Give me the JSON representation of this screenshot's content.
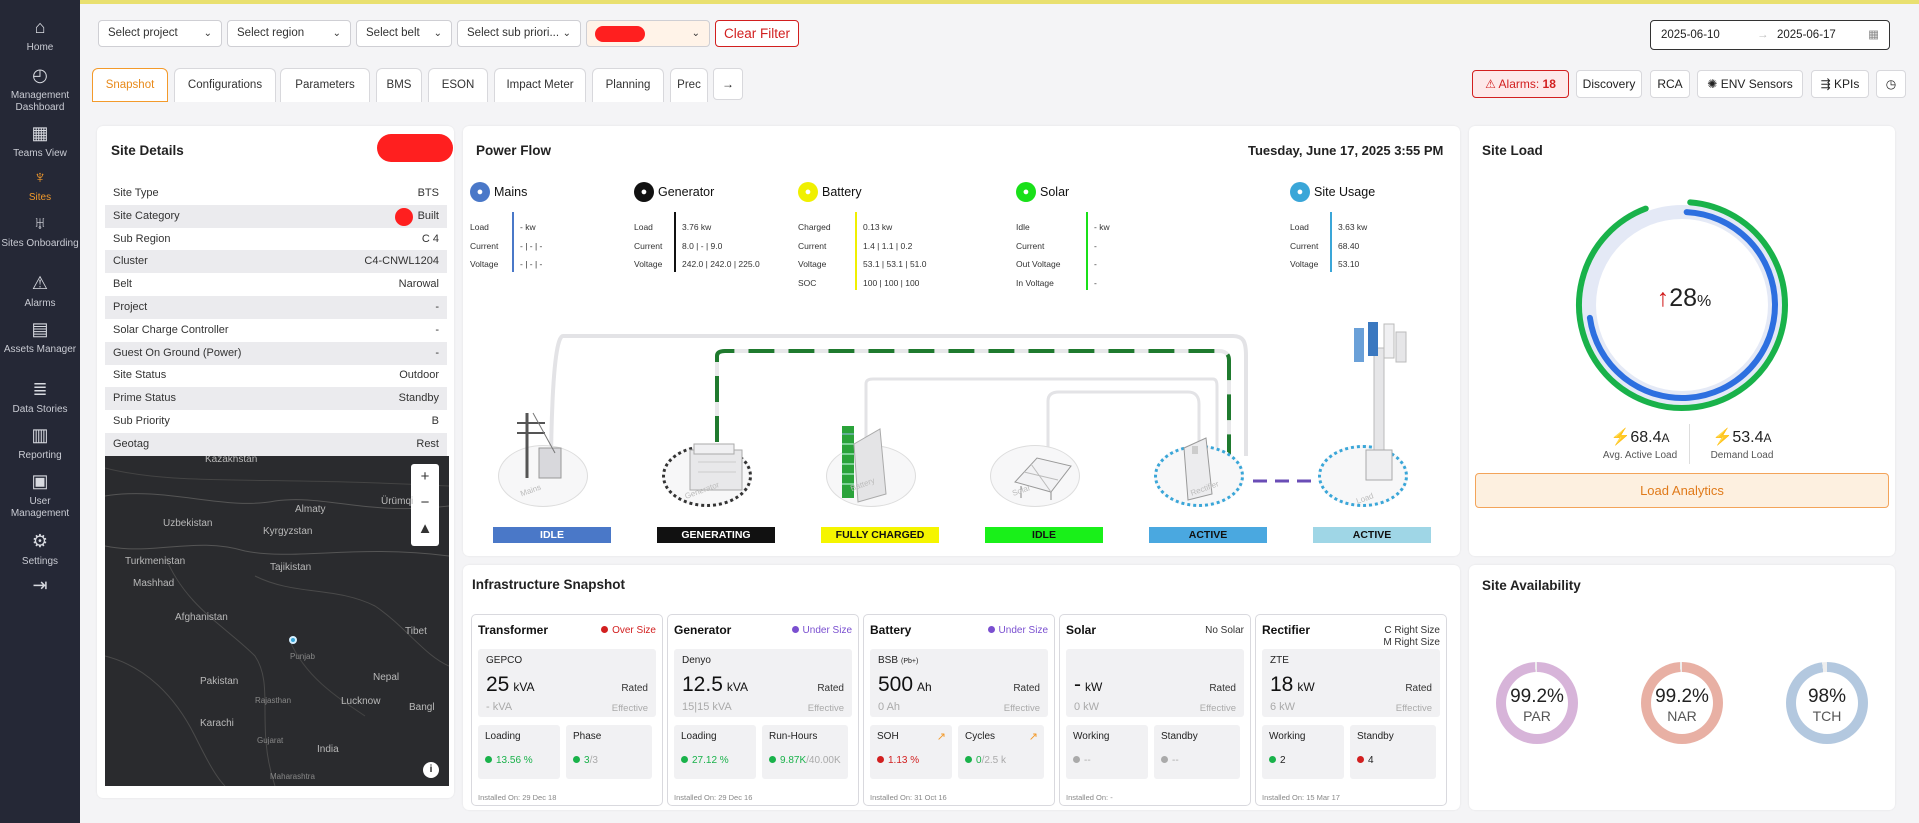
{
  "sidebar": {
    "items": [
      {
        "label": "Home",
        "icon": "home-icon",
        "glyph": "⌂"
      },
      {
        "label": "Management Dashboard",
        "icon": "dashboard-icon",
        "glyph": "◴"
      },
      {
        "label": "Teams View",
        "icon": "teams-icon",
        "glyph": "▦"
      },
      {
        "label": "Sites",
        "icon": "tower-icon",
        "glyph": "♆"
      },
      {
        "label": "Sites Onboarding",
        "icon": "onboarding-icon",
        "glyph": "♅"
      },
      {
        "label": "Alarms",
        "icon": "alarm-icon",
        "glyph": "⚠"
      },
      {
        "label": "Assets Manager",
        "icon": "assets-icon",
        "glyph": "▤"
      },
      {
        "label": "Data Stories",
        "icon": "database-icon",
        "glyph": "≣"
      },
      {
        "label": "Reporting",
        "icon": "report-icon",
        "glyph": "▥"
      },
      {
        "label": "User Management",
        "icon": "user-icon",
        "glyph": "▣"
      },
      {
        "label": "Settings",
        "icon": "gear-icon",
        "glyph": "⚙"
      },
      {
        "label": "",
        "icon": "logout-icon",
        "glyph": "⇥"
      }
    ]
  },
  "filters": {
    "project": "Select project",
    "region": "Select region",
    "belt": "Select belt",
    "sub_priority": "Select sub priori...",
    "clear": "Clear Filter",
    "date_from": "2025-06-10",
    "date_to": "2025-06-17"
  },
  "tabs": [
    "Snapshot",
    "Configurations",
    "Parameters",
    "BMS",
    "ESON",
    "Impact Meter",
    "Planning",
    "Prec"
  ],
  "actions": {
    "alarms_label": "Alarms:",
    "alarms_count": "18",
    "discovery": "Discovery",
    "rca": "RCA",
    "env": "ENV Sensors",
    "kpis": "KPIs"
  },
  "site_details": {
    "title": "Site Details",
    "rows": [
      {
        "k": "Site Type",
        "v": "BTS"
      },
      {
        "k": "Site Category",
        "v": "Built"
      },
      {
        "k": "Sub Region",
        "v": "C 4"
      },
      {
        "k": "Cluster",
        "v": "C4-CNWL1204"
      },
      {
        "k": "Belt",
        "v": "Narowal"
      },
      {
        "k": "Project",
        "v": "-"
      },
      {
        "k": "Solar Charge Controller",
        "v": "-"
      },
      {
        "k": "Guest On Ground (Power)",
        "v": "-"
      },
      {
        "k": "Site Status",
        "v": "Outdoor"
      },
      {
        "k": "Prime Status",
        "v": "Standby"
      },
      {
        "k": "Sub Priority",
        "v": "B"
      },
      {
        "k": "Geotag",
        "v": "Rest"
      }
    ],
    "map_labels": [
      "Kazakhstan",
      "Almaty",
      "Ürümqi",
      "Uzbekistan",
      "Kyrgyzstan",
      "Turkmenistan",
      "Tajikistan",
      "Mashhad",
      "Afghanistan",
      "Tibet",
      "Pakistan",
      "Nepal",
      "Lucknow",
      "Karachi",
      "India",
      "Bangl",
      "Punjab",
      "Rajasthan",
      "Gujarat",
      "Maharashtra"
    ]
  },
  "power_flow": {
    "title": "Power Flow",
    "datetime": "Tuesday, June 17, 2025 3:55 PM",
    "components": [
      {
        "name": "Mains",
        "color": "#4a78c8",
        "rows": [
          [
            "Load",
            "- kw"
          ],
          [
            "Current",
            "- | - | -"
          ],
          [
            "Voltage",
            "- | - | -"
          ]
        ],
        "status": "IDLE",
        "status_bg": "#4a78c8"
      },
      {
        "name": "Generator",
        "color": "#111111",
        "rows": [
          [
            "Load",
            "3.76 kw"
          ],
          [
            "Current",
            "8.0 | - | 9.0"
          ],
          [
            "Voltage",
            "242.0 | 242.0 | 225.0"
          ]
        ],
        "status": "GENERATING",
        "status_bg": "#111111"
      },
      {
        "name": "Battery",
        "color": "#f0f000",
        "rows": [
          [
            "Charged",
            "0.13 kw"
          ],
          [
            "Current",
            "1.4 | 1.1 | 0.2"
          ],
          [
            "Voltage",
            "53.1 | 53.1 | 51.0"
          ],
          [
            "SOC",
            "100 | 100 | 100"
          ]
        ],
        "status": "FULLY CHARGED",
        "status_bg": "#f5f500"
      },
      {
        "name": "Solar",
        "color": "#19e019",
        "rows": [
          [
            "Idle",
            "- kw"
          ],
          [
            "Current",
            "-"
          ],
          [
            "Out Voltage",
            "-"
          ],
          [
            "In Voltage",
            "-"
          ]
        ],
        "status": "IDLE",
        "status_bg": "#19f019"
      },
      {
        "name": "Site Usage",
        "color": "#3aa6d8",
        "rows": [
          [
            "Load",
            "3.63 kw"
          ],
          [
            "Current",
            "68.40"
          ],
          [
            "Voltage",
            "53.10"
          ]
        ],
        "status": "ACTIVE",
        "status_bg": "#4aa8e0"
      }
    ],
    "rectifier_status": "ACTIVE",
    "rectifier_status_bg": "#4aa8e0",
    "site_status": "ACTIVE",
    "site_status_bg": "#9fd6e6",
    "eq_labels": [
      "Mains",
      "Generator",
      "Battery",
      "Solar",
      "Rectifier",
      "Load"
    ]
  },
  "site_load": {
    "title": "Site Load",
    "pct": "28",
    "pct_unit": "%",
    "active": "68.4",
    "active_unit": "A",
    "active_label": "Avg. Active Load",
    "demand": "53.4",
    "demand_unit": "A",
    "demand_label": "Demand Load",
    "button": "Load Analytics",
    "outer_fraction": 0.93,
    "inner_fraction": 0.72
  },
  "infra": {
    "title": "Infrastructure Snapshot",
    "cards": [
      {
        "title": "Transformer",
        "badge": "Over Size",
        "badge_color": "#d21f1f",
        "brand": "GEPCO",
        "big": "25",
        "unit": "kVA",
        "eff": "- kVA",
        "b1": {
          "label": "Loading",
          "value": "13.56 %",
          "dot": "#19b24a",
          "color": "#19b24a"
        },
        "b2": {
          "label": "Phase",
          "value": "3",
          "value2": "/3",
          "dot": "#19b24a",
          "color": "#19b24a"
        },
        "inst": "Installed On: 29 Dec 18"
      },
      {
        "title": "Generator",
        "badge": "Under Size",
        "badge_color": "#7a4fd0",
        "brand": "Denyo",
        "big": "12.5",
        "unit": "kVA",
        "eff": "15|15 kVA",
        "b1": {
          "label": "Loading",
          "value": "27.12 %",
          "dot": "#19b24a",
          "color": "#19b24a"
        },
        "b2": {
          "label": "Run-Hours",
          "value": "9.87K",
          "value2": "/40.00K",
          "dot": "#19b24a",
          "color": "#19b24a"
        },
        "inst": "Installed On: 29 Dec 16"
      },
      {
        "title": "Battery",
        "badge": "Under Size",
        "badge_color": "#7a4fd0",
        "brand": "BSB",
        "brand2": "(Pb+)",
        "big": "500",
        "unit": "Ah",
        "eff": "0 Ah",
        "b1": {
          "label": "SOH",
          "value": "1.13 %",
          "dot": "#d21f1f",
          "color": "#d21f1f"
        },
        "b2": {
          "label": "Cycles",
          "value": "0",
          "value2": "/2.5 k",
          "dot": "#19b24a",
          "color": "#19b24a"
        },
        "inst": "Installed On: 31 Oct 16"
      },
      {
        "title": "Solar",
        "badge": "No Solar",
        "badge_color": "",
        "brand": "",
        "big": "-",
        "unit": "kW",
        "eff": "0 kW",
        "b1": {
          "label": "Working",
          "value": "--",
          "dot": "#aaaaaa",
          "color": "#aaaaaa"
        },
        "b2": {
          "label": "Standby",
          "value": "--",
          "value2": "",
          "dot": "#aaaaaa",
          "color": "#aaaaaa"
        },
        "inst": "Installed On: -"
      },
      {
        "title": "Rectifier",
        "badge": "C Right Size",
        "badge2": "M Right Size",
        "badge_color": "",
        "brand": "ZTE",
        "big": "18",
        "unit": "kW",
        "eff": "6 kW",
        "b1": {
          "label": "Working",
          "value": "2",
          "dot": "#19b24a",
          "color": "#222222"
        },
        "b2": {
          "label": "Standby",
          "value": "4",
          "value2": "",
          "dot": "#d21f1f",
          "color": "#222222"
        },
        "inst": "Installed On: 15 Mar 17"
      }
    ],
    "rated": "Rated",
    "effective": "Effective"
  },
  "availability": {
    "title": "Site Availability",
    "items": [
      {
        "value": "99.2%",
        "label": "PAR",
        "color": "#d7b4d9",
        "fraction": 0.992
      },
      {
        "value": "99.2%",
        "label": "NAR",
        "color": "#e8b0a4",
        "fraction": 0.992
      },
      {
        "value": "98%",
        "label": "TCH",
        "color": "#b3c8df",
        "fraction": 0.98
      }
    ]
  }
}
